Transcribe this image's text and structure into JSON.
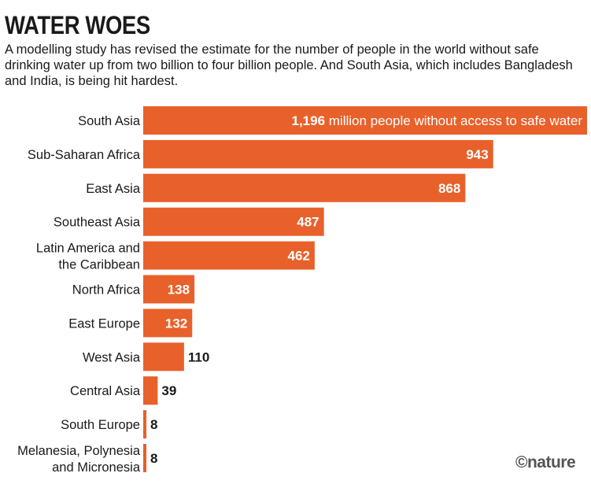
{
  "title": "WATER WOES",
  "subtitle": "A modelling study has revised the estimate for the number of people in the world without safe drinking water up from two billion to four billion people. And South Asia, which includes Bangladesh and India, is being hit hardest.",
  "credit": "©nature",
  "colors": {
    "bar": "#e8612b",
    "label_inside": "#ffffff",
    "label_outside": "#1a1a1a"
  },
  "chart_data": {
    "type": "bar",
    "orientation": "horizontal",
    "categories": [
      [
        "South Asia"
      ],
      [
        "Sub-Saharan Africa"
      ],
      [
        "East Asia"
      ],
      [
        "Southeast Asia"
      ],
      [
        "Latin America and",
        "the Caribbean"
      ],
      [
        "North Africa"
      ],
      [
        "East Europe"
      ],
      [
        "West Asia"
      ],
      [
        "Central Asia"
      ],
      [
        "South Europe"
      ],
      [
        "Melanesia, Polynesia",
        "and Micronesia"
      ]
    ],
    "values": [
      1196,
      943,
      868,
      487,
      462,
      138,
      132,
      110,
      39,
      8,
      8
    ],
    "value_labels": [
      "1,196",
      "943",
      "868",
      "487",
      "462",
      "138",
      "132",
      "110",
      "39",
      "8",
      "8"
    ],
    "first_bar_annotation": "million people without access to safe water",
    "xlim": [
      0,
      1196
    ],
    "grid": false,
    "legend": "none"
  }
}
